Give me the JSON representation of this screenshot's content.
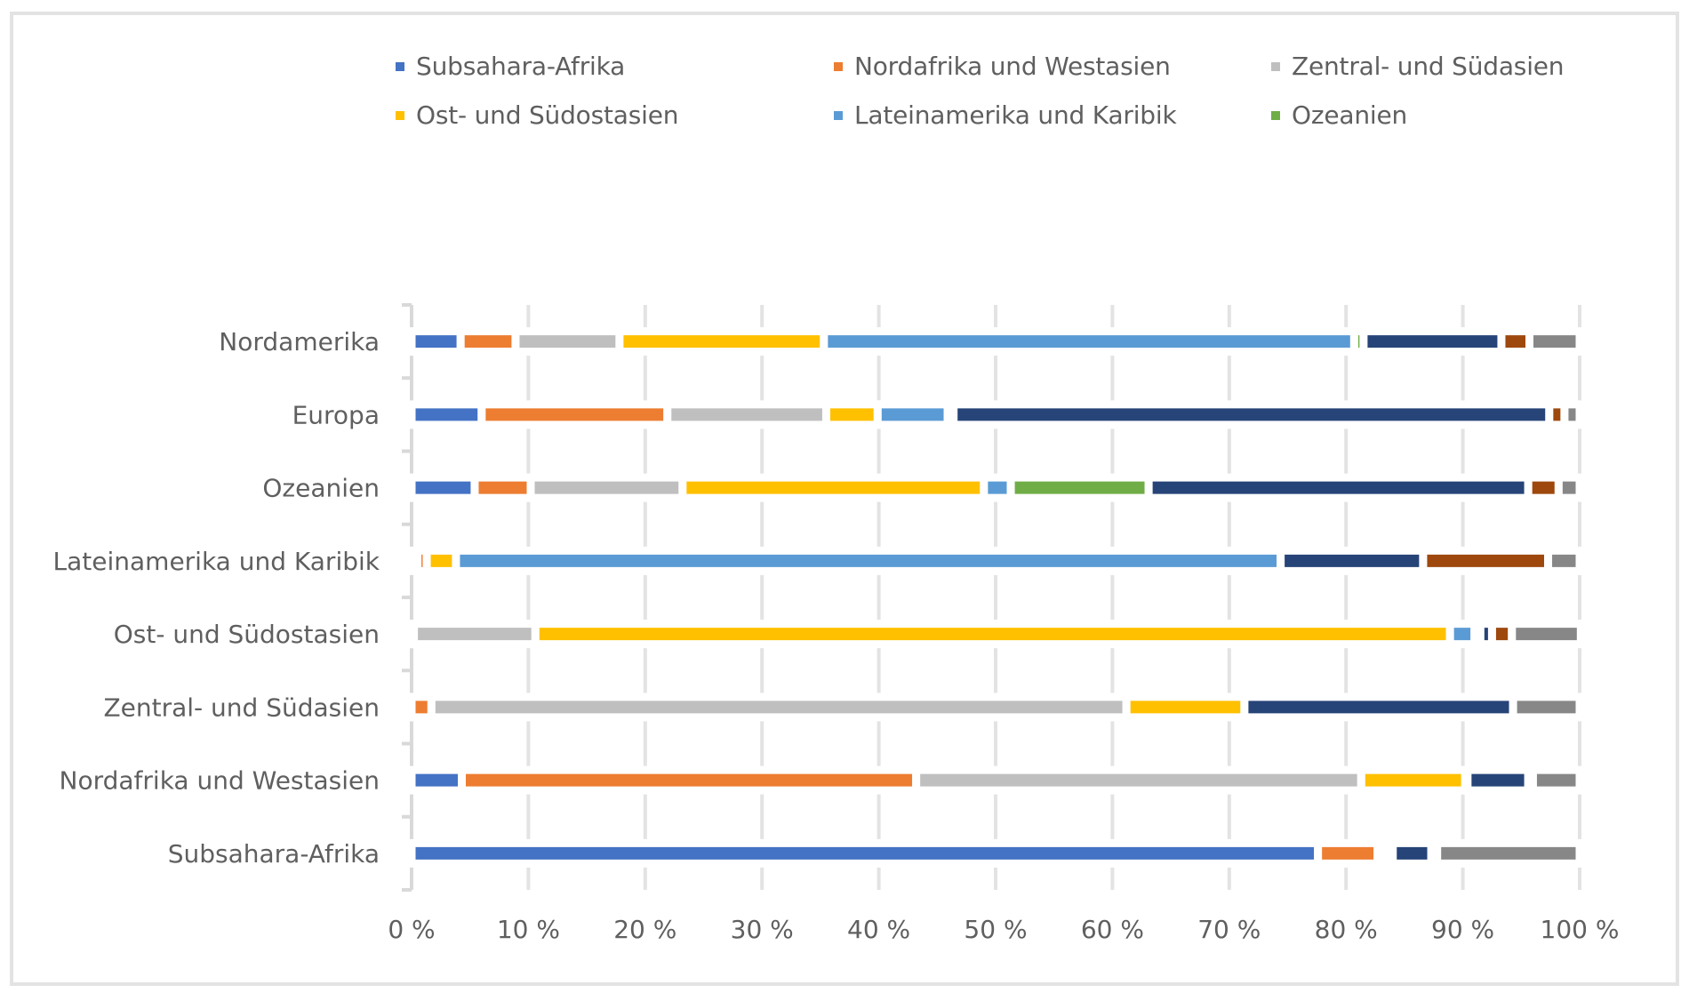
{
  "chart_data": {
    "type": "bar",
    "orientation": "horizontal",
    "stacked": "100%",
    "title": "",
    "xlabel": "",
    "ylabel": "",
    "xlim": [
      0,
      100
    ],
    "grid": true,
    "legend_position": "top",
    "x_tick_labels": [
      "0 %",
      "10 %",
      "20 %",
      "30 %",
      "40 %",
      "50 %",
      "60 %",
      "70 %",
      "80 %",
      "90 %",
      "100 %"
    ],
    "categories": [
      "Subsahara-Afrika",
      "Nordafrika und Westasien",
      "Zentral- und Südasien",
      "Ost- und Südostasien",
      "Lateinamerika und Karibik",
      "Ozeanien",
      "Europa",
      "Nordamerika"
    ],
    "legend": [
      {
        "name": "Subsahara-Afrika",
        "color": "#4472C4"
      },
      {
        "name": "Nordafrika und Westasien",
        "color": "#ED7D31"
      },
      {
        "name": "Zentral- und Südasien",
        "color": "#BFBFBF"
      },
      {
        "name": "Ost- und Südostasien",
        "color": "#FFC000"
      },
      {
        "name": "Lateinamerika und Karibik",
        "color": "#5B9BD5"
      },
      {
        "name": "Ozeanien",
        "color": "#70AD47"
      }
    ],
    "series": [
      {
        "name": "Subsahara-Afrika",
        "color": "#4472C4",
        "values": [
          77.6,
          4.3,
          0.0,
          0.0,
          0.5,
          5.4,
          6.0,
          4.2
        ]
      },
      {
        "name": "Nordafrika und Westasien",
        "color": "#ED7D31",
        "values": [
          5.1,
          38.9,
          1.7,
          0.2,
          0.8,
          4.8,
          15.9,
          4.7
        ]
      },
      {
        "name": "Zentral- und Südasien",
        "color": "#BFBFBF",
        "values": [
          0.5,
          38.1,
          59.5,
          10.4,
          0.0,
          13.0,
          13.6,
          8.9
        ]
      },
      {
        "name": "Ost- und Südostasien",
        "color": "#FFC000",
        "values": [
          0.4,
          8.9,
          10.1,
          78.3,
          2.5,
          25.8,
          4.4,
          17.5
        ]
      },
      {
        "name": "Lateinamerika und Karibik",
        "color": "#5B9BD5",
        "values": [
          0.4,
          0.2,
          0.0,
          2.1,
          70.6,
          2.3,
          6.0,
          45.4
        ]
      },
      {
        "name": "Ozeanien",
        "color": "#70AD47",
        "values": [
          0.0,
          0.0,
          0.0,
          0.5,
          0.0,
          11.8,
          0.5,
          0.8
        ]
      },
      {
        "name": "",
        "color": "#264478",
        "values": [
          3.3,
          5.2,
          23.0,
          1.0,
          12.2,
          32.5,
          51.0,
          11.8
        ]
      },
      {
        "name": "",
        "color": "#9E480E",
        "values": [
          0.5,
          0.4,
          0.0,
          1.7,
          10.7,
          2.6,
          1.3,
          2.4
        ]
      },
      {
        "name": "",
        "color": "#878787",
        "values": [
          12.2,
          4.0,
          5.7,
          5.9,
          2.7,
          1.8,
          1.3,
          4.3
        ]
      }
    ]
  }
}
